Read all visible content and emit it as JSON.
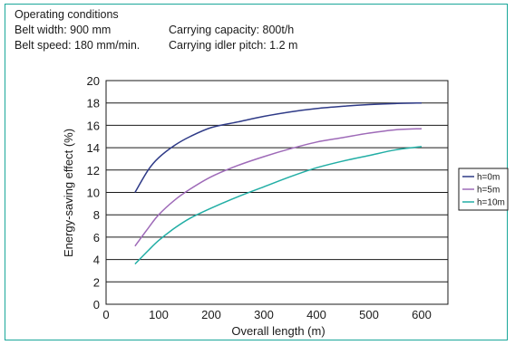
{
  "conditions": {
    "heading": "Operating conditions",
    "belt_width": "Belt width: 900 mm",
    "belt_speed": "Belt speed: 180 mm/min.",
    "carrying_capacity": "Carrying capacity: 800t/h",
    "idler_pitch": "Carrying idler pitch: 1.2 m"
  },
  "chart_data": {
    "type": "line",
    "xlabel": "Overall length (m)",
    "ylabel": "Energy-saving effect (%)",
    "xlim": [
      0,
      650
    ],
    "ylim": [
      0,
      20
    ],
    "xticks": [
      0,
      100,
      200,
      300,
      400,
      500,
      600
    ],
    "yticks": [
      0,
      2,
      4,
      6,
      8,
      10,
      12,
      14,
      16,
      18,
      20
    ],
    "grid": "horizontal",
    "legend_position": "right",
    "series": [
      {
        "name": "h=0m",
        "color": "#2e3a87",
        "x": [
          55,
          80,
          100,
          130,
          160,
          200,
          250,
          300,
          350,
          400,
          450,
          500,
          550,
          600
        ],
        "y": [
          10,
          12,
          13.1,
          14.2,
          15,
          15.8,
          16.3,
          16.8,
          17.2,
          17.5,
          17.7,
          17.85,
          17.95,
          18
        ]
      },
      {
        "name": "h=5m",
        "color": "#9e6ab8",
        "x": [
          55,
          80,
          100,
          130,
          160,
          200,
          250,
          300,
          350,
          400,
          450,
          500,
          550,
          600
        ],
        "y": [
          5.2,
          6.8,
          8,
          9.3,
          10.3,
          11.4,
          12.4,
          13.2,
          13.9,
          14.5,
          14.9,
          15.3,
          15.6,
          15.7
        ]
      },
      {
        "name": "h=10m",
        "color": "#22aea5",
        "x": [
          55,
          80,
          100,
          130,
          160,
          200,
          250,
          300,
          350,
          400,
          450,
          500,
          550,
          600
        ],
        "y": [
          3.6,
          4.8,
          5.7,
          6.8,
          7.7,
          8.6,
          9.6,
          10.5,
          11.4,
          12.2,
          12.8,
          13.3,
          13.8,
          14.1
        ]
      }
    ]
  }
}
